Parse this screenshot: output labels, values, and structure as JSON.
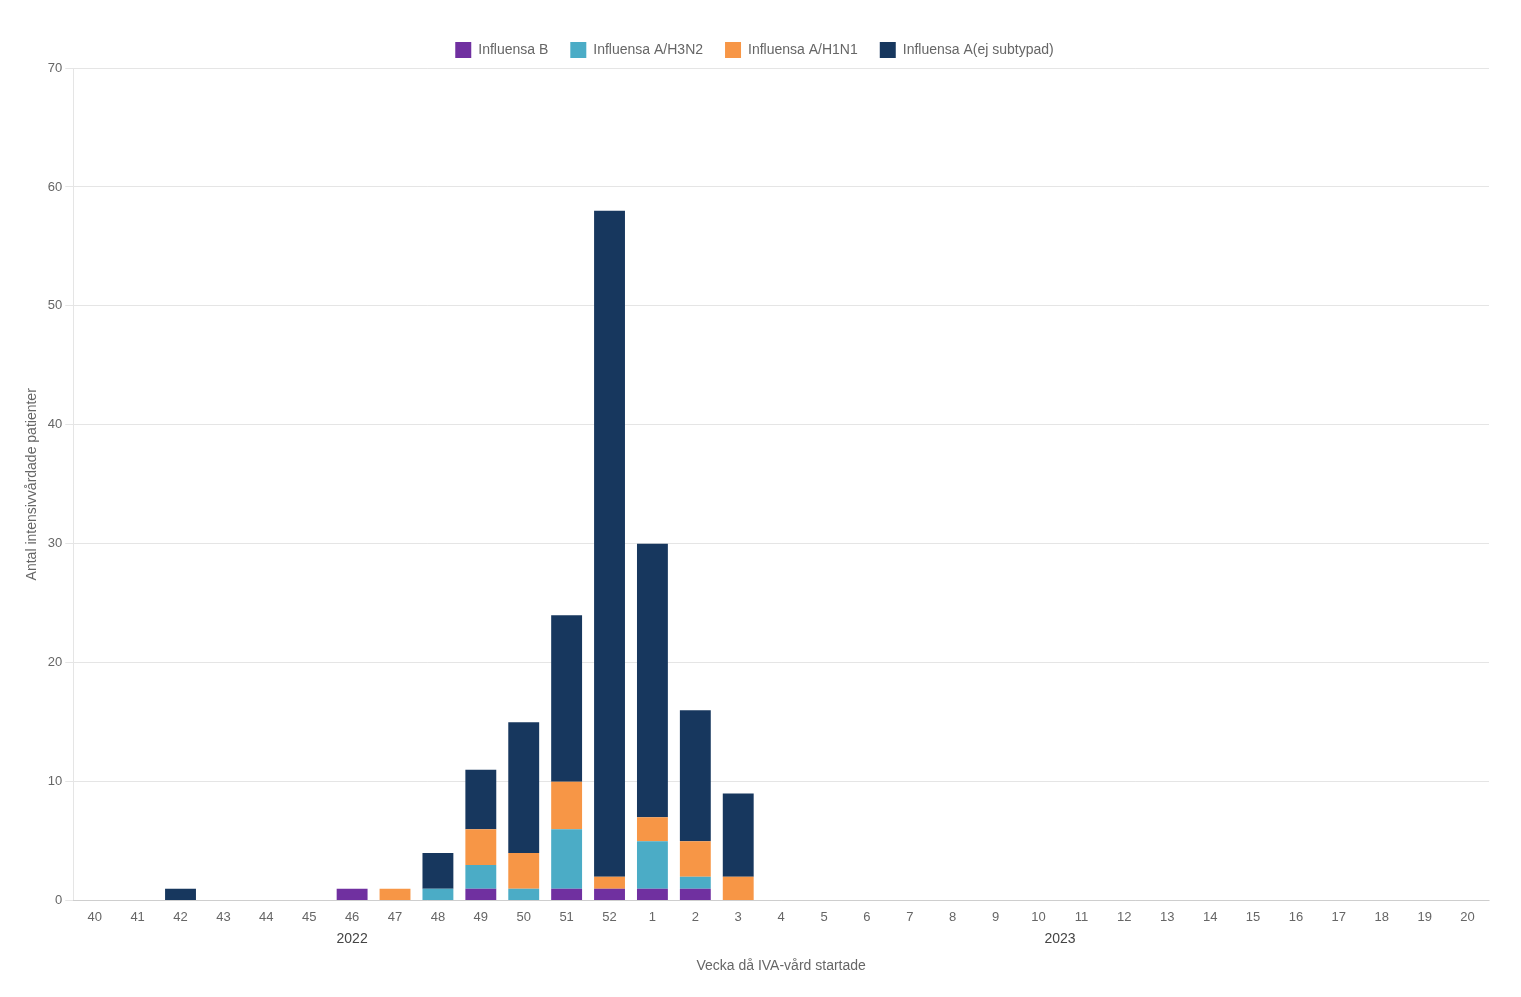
{
  "chart_data": {
    "type": "bar",
    "stacked": true,
    "categories": [
      "40",
      "41",
      "42",
      "43",
      "44",
      "45",
      "46",
      "47",
      "48",
      "49",
      "50",
      "51",
      "52",
      "1",
      "2",
      "3",
      "4",
      "5",
      "6",
      "7",
      "8",
      "9",
      "10",
      "11",
      "12",
      "13",
      "14",
      "15",
      "16",
      "17",
      "18",
      "19",
      "20"
    ],
    "series": [
      {
        "name": "Influensa B",
        "color": "#7030a0",
        "values": [
          0,
          0,
          0,
          0,
          0,
          0,
          1,
          0,
          0,
          1,
          0,
          1,
          1,
          1,
          1,
          0,
          0,
          0,
          0,
          0,
          0,
          0,
          0,
          0,
          0,
          0,
          0,
          0,
          0,
          0,
          0,
          0,
          0
        ]
      },
      {
        "name": "Influensa A/H3N2",
        "color": "#4bacc6",
        "values": [
          0,
          0,
          0,
          0,
          0,
          0,
          0,
          0,
          1,
          2,
          1,
          5,
          0,
          4,
          1,
          0,
          0,
          0,
          0,
          0,
          0,
          0,
          0,
          0,
          0,
          0,
          0,
          0,
          0,
          0,
          0,
          0,
          0
        ]
      },
      {
        "name": "Influensa A/H1N1",
        "color": "#f79646",
        "values": [
          0,
          0,
          0,
          0,
          0,
          0,
          0,
          1,
          0,
          3,
          3,
          4,
          1,
          2,
          3,
          2,
          0,
          0,
          0,
          0,
          0,
          0,
          0,
          0,
          0,
          0,
          0,
          0,
          0,
          0,
          0,
          0,
          0
        ]
      },
      {
        "name": "Influensa A(ej subtypad)",
        "color": "#17375e",
        "values": [
          0,
          0,
          1,
          0,
          0,
          0,
          0,
          0,
          3,
          5,
          11,
          14,
          56,
          23,
          11,
          7,
          0,
          0,
          0,
          0,
          0,
          0,
          0,
          0,
          0,
          0,
          0,
          0,
          0,
          0,
          0,
          0,
          0
        ]
      }
    ],
    "ylabel": "Antal intensivvårdade patienter",
    "xlabel": "Vecka då IVA-vård startade",
    "annotations": [
      {
        "text": "2022",
        "x": [
          "40",
          "52"
        ]
      },
      {
        "text": "2023",
        "x": [
          "1",
          "20"
        ]
      }
    ],
    "ylim": [
      0,
      70
    ],
    "yticks": [
      0,
      10,
      20,
      30,
      40,
      50,
      60,
      70
    ],
    "grid": true,
    "legend": "top"
  }
}
